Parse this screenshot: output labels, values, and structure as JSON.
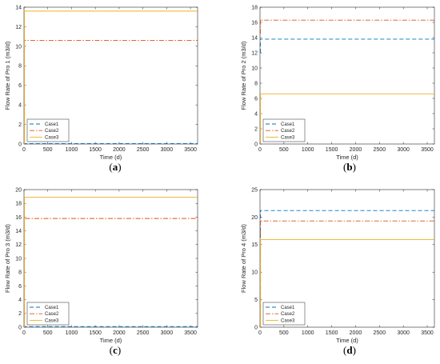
{
  "chart_data": [
    {
      "type": "line",
      "panel_label": "a",
      "xlabel": "Time (d)",
      "ylabel": "Flow Rate of Pro 1 (m3/d)",
      "xlim": [
        0,
        3650
      ],
      "ylim": [
        0,
        14
      ],
      "xticks": [
        0,
        500,
        1000,
        1500,
        2000,
        2500,
        3000,
        3500
      ],
      "yticks": [
        0,
        2,
        4,
        6,
        8,
        10,
        12,
        14
      ],
      "legend_position": "lower-left",
      "series": [
        {
          "name": "Case1",
          "color": "#0072BD",
          "style": "dashed",
          "startup_y": 0,
          "x": [
            0,
            3650
          ],
          "y": [
            0.05,
            0.05
          ]
        },
        {
          "name": "Case2",
          "color": "#D95319",
          "style": "dashdot",
          "startup_y": 0,
          "x": [
            0,
            3650
          ],
          "y": [
            10.6,
            10.6
          ]
        },
        {
          "name": "Case3",
          "color": "#EDB120",
          "style": "solid",
          "startup_y": 0,
          "x": [
            0,
            3650
          ],
          "y": [
            13.6,
            13.6
          ]
        }
      ]
    },
    {
      "type": "line",
      "panel_label": "b",
      "xlabel": "Time (d)",
      "ylabel": "Flow Rate of Pro 2 (m3/d)",
      "xlim": [
        0,
        3650
      ],
      "ylim": [
        0,
        18
      ],
      "xticks": [
        0,
        500,
        1000,
        1500,
        2000,
        2500,
        3000,
        3500
      ],
      "yticks": [
        0,
        2,
        4,
        6,
        8,
        10,
        12,
        14,
        16,
        18
      ],
      "legend_position": "lower-left",
      "series": [
        {
          "name": "Case1",
          "color": "#0072BD",
          "style": "dashed",
          "startup_y": 12.0,
          "x": [
            0,
            3650
          ],
          "y": [
            13.8,
            13.8
          ]
        },
        {
          "name": "Case2",
          "color": "#D95319",
          "style": "dashdot",
          "startup_y": 14.5,
          "x": [
            0,
            3650
          ],
          "y": [
            16.3,
            16.3
          ]
        },
        {
          "name": "Case3",
          "color": "#EDB120",
          "style": "solid",
          "startup_y": 0,
          "x": [
            0,
            3650
          ],
          "y": [
            6.6,
            6.6
          ]
        }
      ]
    },
    {
      "type": "line",
      "panel_label": "c",
      "xlabel": "Time (d)",
      "ylabel": "Flow Rate of Pro 3 (m3/d)",
      "xlim": [
        0,
        3650
      ],
      "ylim": [
        0,
        20
      ],
      "xticks": [
        0,
        500,
        1000,
        1500,
        2000,
        2500,
        3000,
        3500
      ],
      "yticks": [
        0,
        2,
        4,
        6,
        8,
        10,
        12,
        14,
        16,
        18,
        20
      ],
      "legend_position": "lower-left",
      "series": [
        {
          "name": "Case1",
          "color": "#0072BD",
          "style": "dashed",
          "startup_y": 0,
          "x": [
            0,
            3650
          ],
          "y": [
            0.1,
            0.1
          ]
        },
        {
          "name": "Case2",
          "color": "#D95319",
          "style": "dashdot",
          "startup_y": 0,
          "x": [
            0,
            3650
          ],
          "y": [
            15.8,
            15.8
          ]
        },
        {
          "name": "Case3",
          "color": "#EDB120",
          "style": "solid",
          "startup_y": 0,
          "x": [
            0,
            3650
          ],
          "y": [
            18.9,
            18.9
          ]
        }
      ]
    },
    {
      "type": "line",
      "panel_label": "d",
      "xlabel": "Time (d)",
      "ylabel": "Flow Rate of Pro 4 (m3/d)",
      "xlim": [
        0,
        3650
      ],
      "ylim": [
        0,
        25
      ],
      "xticks": [
        0,
        500,
        1000,
        1500,
        2000,
        2500,
        3000,
        3500
      ],
      "yticks": [
        0,
        5,
        10,
        15,
        20,
        25
      ],
      "legend_position": "lower-left",
      "series": [
        {
          "name": "Case1",
          "color": "#0072BD",
          "style": "dashed",
          "startup_y": 0,
          "x": [
            0,
            3650
          ],
          "y": [
            21.2,
            21.2
          ]
        },
        {
          "name": "Case2",
          "color": "#D95319",
          "style": "dashdot",
          "startup_y": 0,
          "x": [
            0,
            3650
          ],
          "y": [
            19.3,
            19.3
          ]
        },
        {
          "name": "Case3",
          "color": "#EDB120",
          "style": "solid",
          "startup_y": 0,
          "x": [
            0,
            3650
          ],
          "y": [
            15.9,
            15.9
          ]
        }
      ]
    }
  ]
}
